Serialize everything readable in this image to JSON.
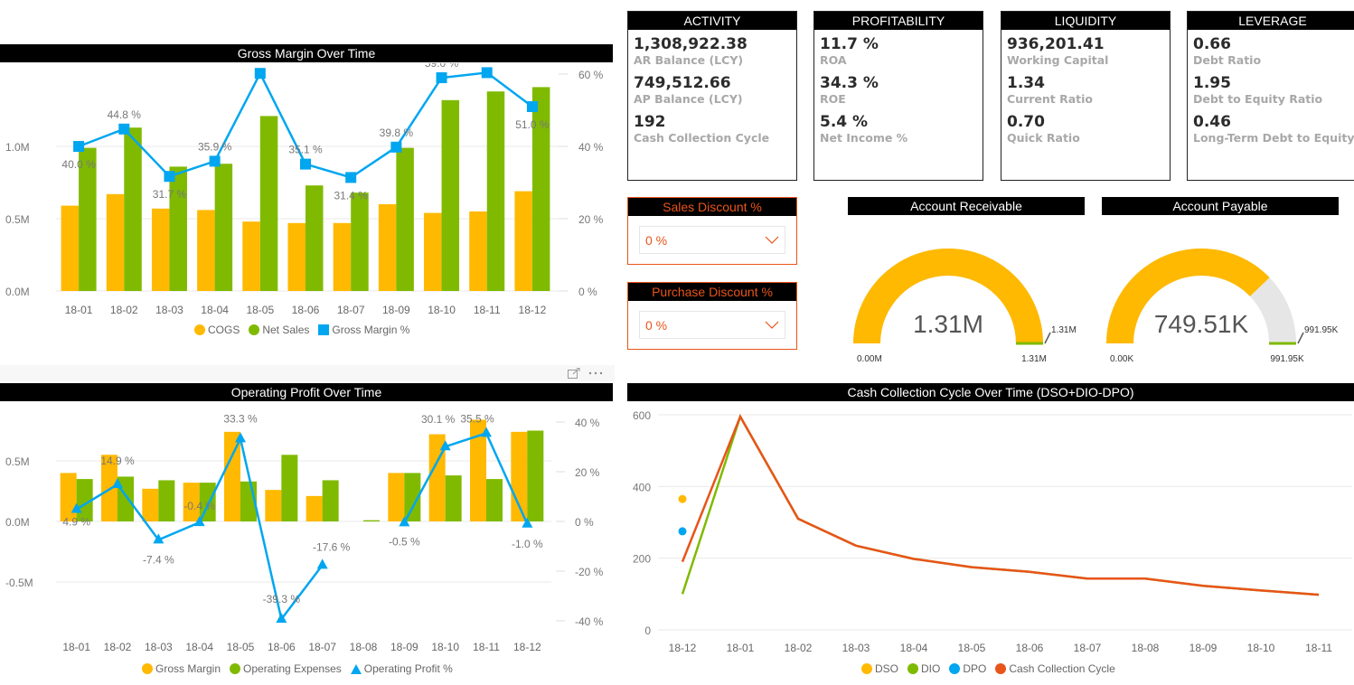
{
  "colors": {
    "yellow": "#ffb900",
    "green": "#7fba00",
    "blue": "#01a6f0",
    "orange": "#e8541a",
    "gauge_bg": "#e6e6e6",
    "label_gray": "#a8a8a8"
  },
  "gross_margin": {
    "title": "Gross Margin Over Time",
    "legend": [
      "COGS",
      "Net Sales",
      "Gross Margin %"
    ]
  },
  "operating_profit": {
    "title": "Operating Profit Over Time",
    "legend": [
      "Gross Margin",
      "Operating Expenses",
      "Operating Profit %"
    ]
  },
  "cash_cycle": {
    "title": "Cash Collection Cycle Over Time (DSO+DIO-DPO)",
    "legend": [
      "DSO",
      "DIO",
      "DPO",
      "Cash Collection Cycle"
    ]
  },
  "toolbar": {
    "focus_icon": "focus-mode-icon",
    "more_icon": "more-options-icon"
  },
  "kpi_cards": [
    {
      "title": "ACTIVITY",
      "items": [
        {
          "value": "1,308,922.38",
          "label": "AR Balance (LCY)"
        },
        {
          "value": "749,512.66",
          "label": "AP Balance (LCY)"
        },
        {
          "value": "192",
          "label": "Cash Collection Cycle"
        }
      ]
    },
    {
      "title": "PROFITABILITY",
      "items": [
        {
          "value": "11.7 %",
          "label": "ROA"
        },
        {
          "value": "34.3 %",
          "label": "ROE"
        },
        {
          "value": "5.4 %",
          "label": "Net Income %"
        }
      ]
    },
    {
      "title": "LIQUIDITY",
      "items": [
        {
          "value": "936,201.41",
          "label": "Working Capital"
        },
        {
          "value": "1.34",
          "label": "Current Ratio"
        },
        {
          "value": "0.70",
          "label": "Quick Ratio"
        }
      ]
    },
    {
      "title": "LEVERAGE",
      "items": [
        {
          "value": "0.66",
          "label": "Debt Ratio"
        },
        {
          "value": "1.95",
          "label": "Debt to Equity Ratio"
        },
        {
          "value": "0.46",
          "label": "Long-Term Debt to Equity"
        }
      ]
    }
  ],
  "slicers": [
    {
      "title": "Sales Discount %",
      "value": "0 %"
    },
    {
      "title": "Purchase Discount %",
      "value": "0 %"
    }
  ],
  "gauges": [
    {
      "title": "Account Receivable",
      "value": 1308922.38,
      "value_label": "1.31M",
      "min": 0,
      "max": 1308922.38,
      "target": 1308922.38,
      "min_label": "0.00M",
      "max_label": "1.31M",
      "target_label": "1.31M"
    },
    {
      "title": "Account Payable",
      "value": 749512.66,
      "value_label": "749.51K",
      "min": 0,
      "max": 991950,
      "target": 991950,
      "min_label": "0.00K",
      "max_label": "991.95K",
      "target_label": "991.95K"
    }
  ],
  "chart_data": [
    {
      "type": "bar",
      "title": "Gross Margin Over Time",
      "categories": [
        "18-01",
        "18-02",
        "18-03",
        "18-04",
        "18-05",
        "18-06",
        "18-07",
        "18-09",
        "18-10",
        "18-11",
        "18-12"
      ],
      "series": [
        {
          "name": "COGS",
          "axis": "left",
          "values": [
            0.59,
            0.67,
            0.57,
            0.56,
            0.48,
            0.47,
            0.47,
            0.6,
            0.54,
            0.55,
            0.69
          ]
        },
        {
          "name": "Net Sales",
          "axis": "left",
          "values": [
            0.99,
            1.13,
            0.86,
            0.88,
            1.21,
            0.73,
            0.68,
            0.99,
            1.32,
            1.38,
            1.41
          ]
        },
        {
          "name": "Gross Margin %",
          "type": "line",
          "axis": "right",
          "values": [
            40.0,
            44.8,
            31.7,
            35.9,
            60.2,
            35.1,
            31.4,
            39.8,
            59.0,
            60.4,
            51.0
          ],
          "labels": [
            "40.0 %",
            "44.8 %",
            "31.7 %",
            "35.9 %",
            "60.2 %",
            "35.1 %",
            "31.4 %",
            "39.8 %",
            "59.0 %",
            "60.4 %",
            "51.0 %"
          ]
        }
      ],
      "y_left": {
        "ticks": [
          "0.0M",
          "0.5M",
          "1.0M"
        ],
        "tick_values": [
          0,
          0.5,
          1.0
        ],
        "range": [
          0,
          1.5
        ]
      },
      "y_right": {
        "ticks": [
          "0 %",
          "20 %",
          "40 %",
          "60 %"
        ],
        "tick_values": [
          0,
          20,
          40,
          60
        ],
        "range": [
          0,
          64
        ]
      },
      "legend": "bottom-center",
      "grid": true
    },
    {
      "type": "bar",
      "title": "Operating Profit Over Time",
      "categories": [
        "18-01",
        "18-02",
        "18-03",
        "18-04",
        "18-05",
        "18-06",
        "18-07",
        "18-08",
        "18-09",
        "18-10",
        "18-11",
        "18-12"
      ],
      "series": [
        {
          "name": "Gross Margin",
          "axis": "left",
          "values": [
            0.4,
            0.55,
            0.27,
            0.32,
            0.74,
            0.26,
            0.21,
            0.0,
            0.4,
            0.72,
            0.84,
            0.74
          ]
        },
        {
          "name": "Operating Expenses",
          "axis": "left",
          "values": [
            0.35,
            0.37,
            0.34,
            0.32,
            0.33,
            0.55,
            0.34,
            0.01,
            0.4,
            0.38,
            0.35,
            0.75
          ]
        },
        {
          "name": "Operating Profit %",
          "type": "line",
          "axis": "right",
          "values": [
            4.9,
            14.9,
            -7.4,
            -0.4,
            33.3,
            -39.3,
            -17.6,
            null,
            -0.5,
            30.1,
            35.5,
            -1.0
          ],
          "labels": [
            "4.9 %",
            "14.9 %",
            "-7.4 %",
            "-0.4 %",
            "33.3 %",
            "-39.3 %",
            "-17.6 %",
            "",
            "-0.5 %",
            "30.1 %",
            "35.5 %",
            "-1.0 %"
          ]
        }
      ],
      "y_left": {
        "ticks": [
          "-0.5M",
          "0.0M",
          "0.5M"
        ],
        "tick_values": [
          -0.5,
          0,
          0.5
        ],
        "range": [
          -0.88,
          0.88
        ]
      },
      "y_right": {
        "ticks": [
          "-40 %",
          "-20 %",
          "0 %",
          "20 %",
          "40 %"
        ],
        "tick_values": [
          -40,
          -20,
          0,
          20,
          40
        ],
        "range": [
          -44,
          44
        ]
      },
      "legend": "bottom-center",
      "grid": true
    },
    {
      "type": "line",
      "title": "Cash Collection Cycle Over Time (DSO+DIO-DPO)",
      "categories": [
        "18-12",
        "18-01",
        "18-02",
        "18-03",
        "18-04",
        "18-05",
        "18-06",
        "18-07",
        "18-08",
        "18-09",
        "18-10",
        "18-11"
      ],
      "series": [
        {
          "name": "DSO",
          "color": "#ffb900",
          "values": [
            365,
            null,
            null,
            null,
            null,
            null,
            null,
            null,
            null,
            null,
            null,
            null
          ]
        },
        {
          "name": "DIO",
          "color": "#7fba00",
          "values": [
            100,
            595,
            310,
            235,
            198,
            175,
            162,
            143,
            143,
            123,
            110,
            98
          ]
        },
        {
          "name": "DPO",
          "color": "#01a6f0",
          "values": [
            275,
            null,
            null,
            null,
            null,
            null,
            null,
            null,
            null,
            null,
            null,
            null
          ]
        },
        {
          "name": "Cash Collection Cycle",
          "color": "#e8541a",
          "values": [
            190,
            595,
            310,
            235,
            198,
            175,
            162,
            143,
            143,
            123,
            110,
            98
          ]
        }
      ],
      "y": {
        "ticks": [
          "0",
          "200",
          "400",
          "600"
        ],
        "tick_values": [
          0,
          200,
          400,
          600
        ],
        "range": [
          0,
          600
        ]
      },
      "legend": "bottom-center",
      "grid": true
    }
  ]
}
